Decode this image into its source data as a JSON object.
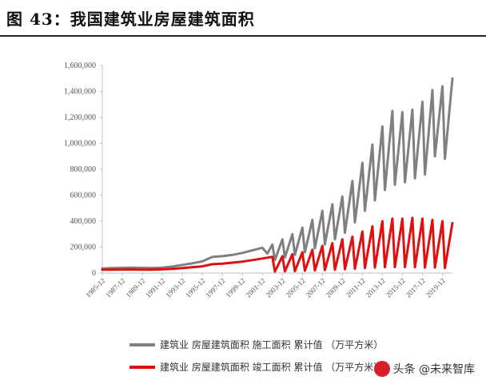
{
  "figure": {
    "title": "图 43：我国建筑业房屋建筑面积"
  },
  "colors": {
    "construction_area": "#808080",
    "completed_area": "#e01010",
    "axis": "#bfbfbf"
  },
  "watermark": {
    "text": "头条 @未来智库"
  },
  "chart_data": {
    "type": "line",
    "title": "",
    "xlabel": "",
    "ylabel": "",
    "ylim": [
      0,
      1600000
    ],
    "yticks": [
      "0",
      "200,000",
      "400,000",
      "600,000",
      "800,000",
      "1,000,000",
      "1,200,000",
      "1,400,000",
      "1,600,000"
    ],
    "x_range": [
      "1985-12",
      "2019-12"
    ],
    "xticks": [
      "1985-12",
      "1987-12",
      "1989-12",
      "1991-12",
      "1993-12",
      "1995-12",
      "1997-12",
      "1999-12",
      "2001-12",
      "2003-12",
      "2005-12",
      "2007-12",
      "2009-12",
      "2011-12",
      "2013-12",
      "2015-12",
      "2017-12",
      "2019-12"
    ],
    "grid": false,
    "legend_position": "bottom",
    "series": [
      {
        "name": "建筑业 房屋建筑面积 施工面积 累计值 （万平方米）",
        "color": "#808080",
        "points": [
          [
            "1985-12",
            35000
          ],
          [
            "1986-12",
            38000
          ],
          [
            "1987-12",
            40000
          ],
          [
            "1988-12",
            42000
          ],
          [
            "1989-12",
            40000
          ],
          [
            "1990-12",
            39000
          ],
          [
            "1991-12",
            42000
          ],
          [
            "1992-12",
            50000
          ],
          [
            "1993-12",
            63000
          ],
          [
            "1994-12",
            75000
          ],
          [
            "1995-12",
            90000
          ],
          [
            "1996-12",
            125000
          ],
          [
            "1997-12",
            130000
          ],
          [
            "1998-12",
            140000
          ],
          [
            "1999-12",
            155000
          ],
          [
            "2000-12",
            175000
          ],
          [
            "2001-12",
            195000
          ],
          [
            "2002-06",
            150000
          ],
          [
            "2002-12",
            220000
          ],
          [
            "2003-03",
            100000
          ],
          [
            "2003-12",
            260000
          ],
          [
            "2004-03",
            120000
          ],
          [
            "2004-12",
            300000
          ],
          [
            "2005-03",
            140000
          ],
          [
            "2005-12",
            350000
          ],
          [
            "2006-03",
            160000
          ],
          [
            "2006-12",
            410000
          ],
          [
            "2007-03",
            190000
          ],
          [
            "2007-12",
            480000
          ],
          [
            "2008-03",
            220000
          ],
          [
            "2008-12",
            530000
          ],
          [
            "2009-03",
            260000
          ],
          [
            "2009-12",
            590000
          ],
          [
            "2010-03",
            310000
          ],
          [
            "2010-12",
            710000
          ],
          [
            "2011-03",
            390000
          ],
          [
            "2011-12",
            850000
          ],
          [
            "2012-03",
            480000
          ],
          [
            "2012-12",
            990000
          ],
          [
            "2013-03",
            560000
          ],
          [
            "2013-12",
            1130000
          ],
          [
            "2014-03",
            640000
          ],
          [
            "2014-12",
            1250000
          ],
          [
            "2015-03",
            680000
          ],
          [
            "2015-12",
            1240000
          ],
          [
            "2016-03",
            700000
          ],
          [
            "2016-12",
            1260000
          ],
          [
            "2017-03",
            730000
          ],
          [
            "2017-12",
            1320000
          ],
          [
            "2018-03",
            760000
          ],
          [
            "2018-12",
            1410000
          ],
          [
            "2019-03",
            900000
          ],
          [
            "2019-12",
            1440000
          ],
          [
            "2020-03",
            880000
          ],
          [
            "2020-12",
            1500000
          ]
        ]
      },
      {
        "name": "建筑业 房屋建筑面积 竣工面积 累计值 （万平方米）",
        "color": "#e01010",
        "points": [
          [
            "1985-12",
            25000
          ],
          [
            "1986-12",
            26000
          ],
          [
            "1987-12",
            27000
          ],
          [
            "1988-12",
            27000
          ],
          [
            "1989-12",
            26000
          ],
          [
            "1990-12",
            26000
          ],
          [
            "1991-12",
            28000
          ],
          [
            "1992-12",
            32000
          ],
          [
            "1993-12",
            38000
          ],
          [
            "1994-12",
            45000
          ],
          [
            "1995-12",
            52000
          ],
          [
            "1996-12",
            68000
          ],
          [
            "1997-12",
            72000
          ],
          [
            "1998-12",
            80000
          ],
          [
            "1999-12",
            88000
          ],
          [
            "2000-12",
            100000
          ],
          [
            "2001-12",
            112000
          ],
          [
            "2002-12",
            125000
          ],
          [
            "2003-03",
            12000
          ],
          [
            "2003-12",
            130000
          ],
          [
            "2004-03",
            13000
          ],
          [
            "2004-12",
            145000
          ],
          [
            "2005-03",
            15000
          ],
          [
            "2005-12",
            160000
          ],
          [
            "2006-03",
            17000
          ],
          [
            "2006-12",
            180000
          ],
          [
            "2007-03",
            20000
          ],
          [
            "2007-12",
            210000
          ],
          [
            "2008-03",
            23000
          ],
          [
            "2008-12",
            230000
          ],
          [
            "2009-03",
            25000
          ],
          [
            "2009-12",
            260000
          ],
          [
            "2010-03",
            30000
          ],
          [
            "2010-12",
            280000
          ],
          [
            "2011-03",
            33000
          ],
          [
            "2011-12",
            320000
          ],
          [
            "2012-03",
            38000
          ],
          [
            "2012-12",
            360000
          ],
          [
            "2013-03",
            42000
          ],
          [
            "2013-12",
            400000
          ],
          [
            "2014-03",
            45000
          ],
          [
            "2014-12",
            420000
          ],
          [
            "2015-03",
            45000
          ],
          [
            "2015-12",
            420000
          ],
          [
            "2016-03",
            45000
          ],
          [
            "2016-12",
            425000
          ],
          [
            "2017-03",
            45000
          ],
          [
            "2017-12",
            420000
          ],
          [
            "2018-03",
            42000
          ],
          [
            "2018-12",
            410000
          ],
          [
            "2019-03",
            42000
          ],
          [
            "2019-12",
            400000
          ],
          [
            "2020-03",
            38000
          ],
          [
            "2020-12",
            385000
          ]
        ]
      }
    ]
  }
}
